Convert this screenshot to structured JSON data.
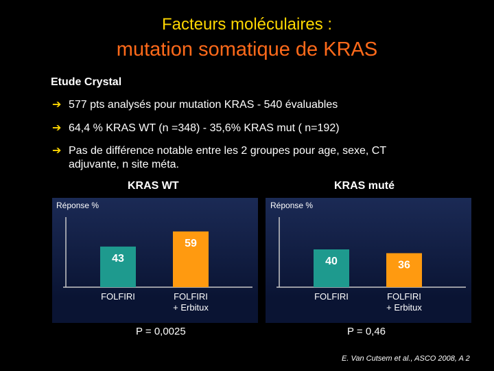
{
  "slide": {
    "title_line1": "Facteurs moléculaires :",
    "title_line2": "mutation somatique de KRAS",
    "study": "Etude Crystal",
    "bullets": [
      "577 pts analysés pour mutation KRAS - 540 évaluables",
      "64,4 % KRAS WT (n =348) - 35,6% KRAS mut ( n=192)",
      "Pas de différence notable entre les 2 groupes pour age, sexe, CT adjuvante, n site méta."
    ],
    "source": "E. Van Cutsem et al., ASCO 2008, A 2"
  },
  "chart_data": [
    {
      "type": "bar",
      "title": "KRAS WT",
      "ylabel": "Réponse %",
      "categories": [
        "FOLFIRI",
        "FOLFIRI\n+ Erbitux"
      ],
      "values": [
        43,
        59
      ],
      "ylim": [
        0,
        80
      ],
      "pvalue": "P = 0,0025",
      "colors": [
        "#1e9a8e",
        "#ff9a10"
      ],
      "grid": false
    },
    {
      "type": "bar",
      "title": "KRAS muté",
      "ylabel": "Réponse %",
      "categories": [
        "FOLFIRI",
        "FOLFIRI\n+ Erbitux"
      ],
      "values": [
        40,
        36
      ],
      "ylim": [
        0,
        80
      ],
      "pvalue": "P = 0,46",
      "colors": [
        "#1e9a8e",
        "#ff9a10"
      ],
      "grid": false
    }
  ]
}
